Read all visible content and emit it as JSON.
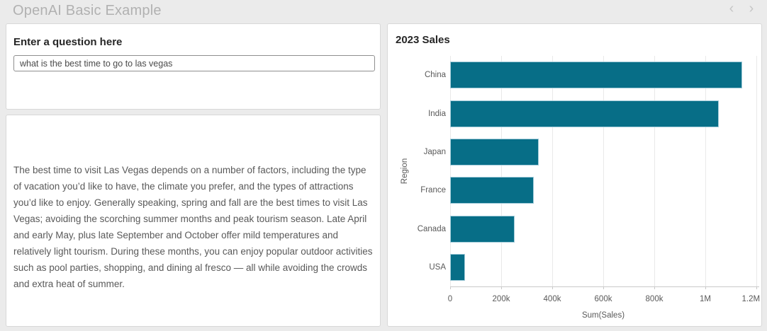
{
  "header": {
    "title": "OpenAI Basic Example",
    "nav_prev_icon": "‹",
    "nav_next_icon": "›"
  },
  "question_panel": {
    "title": "Enter a question here",
    "input_value": "what is the best time to go to las vegas"
  },
  "answer_panel": {
    "text": "The best time to visit Las Vegas depends on a number of factors, including the type of vacation you’d like to have, the climate you prefer, and the types of attractions you’d like to enjoy. Generally speaking, spring and fall are the best times to visit Las Vegas; avoiding the scorching summer months and peak tourism season. Late April and early May, plus late September and October offer mild temperatures and relatively light tourism. During these months, you can enjoy popular outdoor activities such as pool parties, shopping, and dining al fresco — all while avoiding the crowds and extra heat of summer."
  },
  "chart_panel": {
    "title": "2023 Sales"
  },
  "chart_data": {
    "type": "bar",
    "orientation": "horizontal",
    "title": "2023 Sales",
    "categories": [
      "China",
      "India",
      "Japan",
      "France",
      "Canada",
      "USA"
    ],
    "values": [
      1145000,
      1053000,
      347000,
      328000,
      253000,
      58000
    ],
    "xlabel": "Sum(Sales)",
    "ylabel": "Region",
    "xlim": [
      0,
      1200000
    ],
    "xticks": [
      0,
      200000,
      400000,
      600000,
      800000,
      1000000,
      1200000
    ],
    "xtick_labels": [
      "0",
      "200k",
      "400k",
      "600k",
      "800k",
      "1M",
      "1.2M"
    ],
    "grid": true,
    "legend": false,
    "bar_color": "#076e87"
  },
  "colors": {
    "page_bg": "#ebebeb",
    "panel_bg": "#ffffff",
    "panel_border": "#d8d8d8",
    "bar_fill": "#076e87",
    "bar_border": "#a2cbd9",
    "muted_text": "#595959",
    "title_text": "#262626",
    "header_text": "#b1b1b1"
  }
}
